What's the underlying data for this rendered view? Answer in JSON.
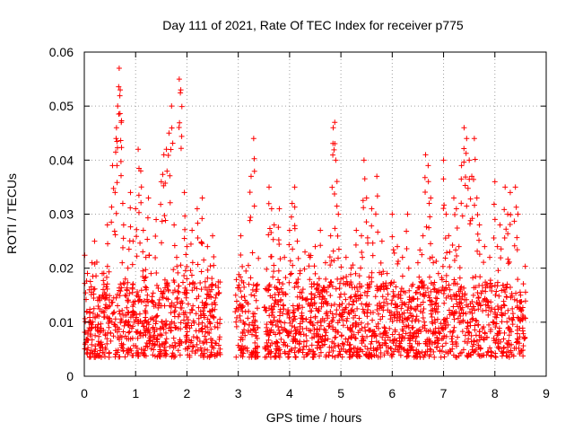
{
  "chart_data": {
    "type": "scatter",
    "title": "Day 111 of 2021, Rate Of TEC Index for receiver p775",
    "xlabel": "GPS time / hours",
    "ylabel": "ROTI / TECUs",
    "xlim": [
      0,
      9
    ],
    "ylim": [
      0,
      0.06
    ],
    "xticks": [
      "0",
      "1",
      "2",
      "3",
      "4",
      "5",
      "6",
      "7",
      "8",
      "9"
    ],
    "yticks": [
      "0",
      "0.01",
      "0.02",
      "0.03",
      "0.04",
      "0.05",
      "0.06"
    ],
    "grid": true,
    "marker": "+",
    "color": "#ff0000",
    "data_coverage_hours": [
      [
        0.0,
        2.65
      ],
      [
        2.95,
        3.4
      ],
      [
        3.5,
        8.6
      ]
    ],
    "series": [
      {
        "name": "ROTI",
        "points": [
          [
            0.05,
            0.012
          ],
          [
            0.1,
            0.016
          ],
          [
            0.15,
            0.021
          ],
          [
            0.2,
            0.025
          ],
          [
            0.25,
            0.009
          ],
          [
            0.3,
            0.014
          ],
          [
            0.35,
            0.019
          ],
          [
            0.4,
            0.011
          ],
          [
            0.45,
            0.028
          ],
          [
            0.5,
            0.013
          ],
          [
            0.55,
            0.039
          ],
          [
            0.6,
            0.034
          ],
          [
            0.62,
            0.044
          ],
          [
            0.65,
            0.05
          ],
          [
            0.68,
            0.057
          ],
          [
            0.7,
            0.053
          ],
          [
            0.72,
            0.047
          ],
          [
            0.75,
            0.032
          ],
          [
            0.8,
            0.018
          ],
          [
            0.85,
            0.02
          ],
          [
            0.9,
            0.034
          ],
          [
            0.95,
            0.025
          ],
          [
            1.0,
            0.031
          ],
          [
            1.05,
            0.042
          ],
          [
            1.1,
            0.038
          ],
          [
            1.15,
            0.027
          ],
          [
            1.2,
            0.022
          ],
          [
            1.25,
            0.033
          ],
          [
            1.3,
            0.019
          ],
          [
            1.4,
            0.029
          ],
          [
            1.5,
            0.036
          ],
          [
            1.55,
            0.041
          ],
          [
            1.6,
            0.042
          ],
          [
            1.65,
            0.045
          ],
          [
            1.7,
            0.05
          ],
          [
            1.75,
            0.028
          ],
          [
            1.8,
            0.022
          ],
          [
            1.85,
            0.055
          ],
          [
            1.88,
            0.053
          ],
          [
            1.95,
            0.034
          ],
          [
            2.0,
            0.024
          ],
          [
            2.1,
            0.027
          ],
          [
            2.2,
            0.031
          ],
          [
            2.3,
            0.033
          ],
          [
            2.4,
            0.024
          ],
          [
            2.5,
            0.026
          ],
          [
            2.6,
            0.009
          ],
          [
            2.65,
            0.004
          ],
          [
            2.95,
            0.015
          ],
          [
            3.05,
            0.026
          ],
          [
            3.1,
            0.01
          ],
          [
            3.2,
            0.012
          ],
          [
            3.25,
            0.037
          ],
          [
            3.3,
            0.044
          ],
          [
            3.35,
            0.014
          ],
          [
            3.55,
            0.016
          ],
          [
            3.6,
            0.035
          ],
          [
            3.65,
            0.031
          ],
          [
            3.7,
            0.028
          ],
          [
            3.8,
            0.031
          ],
          [
            3.9,
            0.022
          ],
          [
            4.0,
            0.027
          ],
          [
            4.05,
            0.032
          ],
          [
            4.1,
            0.035
          ],
          [
            4.15,
            0.025
          ],
          [
            4.2,
            0.019
          ],
          [
            4.3,
            0.023
          ],
          [
            4.4,
            0.022
          ],
          [
            4.5,
            0.024
          ],
          [
            4.6,
            0.027
          ],
          [
            4.7,
            0.021
          ],
          [
            4.8,
            0.026
          ],
          [
            4.85,
            0.046
          ],
          [
            4.88,
            0.047
          ],
          [
            4.9,
            0.04
          ],
          [
            4.95,
            0.03
          ],
          [
            5.0,
            0.018
          ],
          [
            5.1,
            0.022
          ],
          [
            5.2,
            0.02
          ],
          [
            5.3,
            0.027
          ],
          [
            5.4,
            0.026
          ],
          [
            5.45,
            0.04
          ],
          [
            5.5,
            0.033
          ],
          [
            5.6,
            0.031
          ],
          [
            5.7,
            0.037
          ],
          [
            5.8,
            0.025
          ],
          [
            5.9,
            0.019
          ],
          [
            6.0,
            0.03
          ],
          [
            6.1,
            0.024
          ],
          [
            6.2,
            0.022
          ],
          [
            6.3,
            0.03
          ],
          [
            6.4,
            0.017
          ],
          [
            6.5,
            0.021
          ],
          [
            6.6,
            0.026
          ],
          [
            6.65,
            0.041
          ],
          [
            6.7,
            0.039
          ],
          [
            6.75,
            0.033
          ],
          [
            6.8,
            0.021
          ],
          [
            6.9,
            0.019
          ],
          [
            7.0,
            0.04
          ],
          [
            7.05,
            0.03
          ],
          [
            7.1,
            0.026
          ],
          [
            7.2,
            0.033
          ],
          [
            7.25,
            0.031
          ],
          [
            7.3,
            0.024
          ],
          [
            7.35,
            0.039
          ],
          [
            7.4,
            0.046
          ],
          [
            7.45,
            0.044
          ],
          [
            7.5,
            0.04
          ],
          [
            7.55,
            0.037
          ],
          [
            7.6,
            0.044
          ],
          [
            7.65,
            0.033
          ],
          [
            7.7,
            0.028
          ],
          [
            7.8,
            0.024
          ],
          [
            7.9,
            0.022
          ],
          [
            8.0,
            0.036
          ],
          [
            8.05,
            0.024
          ],
          [
            8.1,
            0.028
          ],
          [
            8.2,
            0.035
          ],
          [
            8.25,
            0.03
          ],
          [
            8.3,
            0.034
          ],
          [
            8.4,
            0.035
          ],
          [
            8.45,
            0.03
          ],
          [
            8.5,
            0.015
          ],
          [
            8.55,
            0.011
          ]
        ]
      }
    ]
  }
}
